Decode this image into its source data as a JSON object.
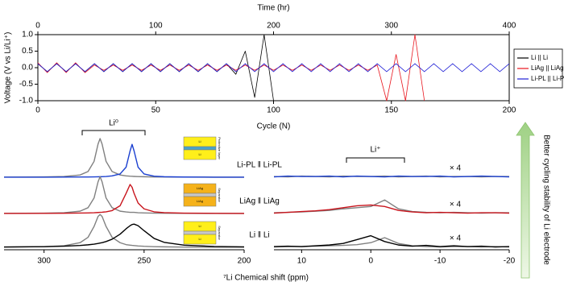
{
  "chart_data": [
    {
      "type": "line",
      "x_label": "Cycle (N)",
      "x2_label": "Time (hr)",
      "y_label": "Voltage (V vs Li/Li⁺)",
      "xlim": [
        0,
        200
      ],
      "xticks": [
        0,
        50,
        100,
        150,
        200
      ],
      "x2lim": [
        0,
        400
      ],
      "x2ticks": [
        0,
        100,
        200,
        300,
        400
      ],
      "ylim": [
        -1,
        1
      ],
      "yticks": [
        {
          "value": -1,
          "label": "-1.0"
        },
        -0.5,
        {
          "value": 0,
          "label": "0.0"
        },
        0.5,
        {
          "value": 1,
          "label": "1.0"
        }
      ],
      "legend": "right",
      "x": [
        0,
        4,
        8,
        12,
        16,
        20,
        24,
        28,
        32,
        36,
        40,
        44,
        48,
        52,
        56,
        60,
        64,
        68,
        72,
        76,
        80,
        84,
        88,
        92,
        96,
        100,
        104,
        108,
        112,
        116,
        120,
        124,
        128,
        132,
        136,
        140,
        144,
        148,
        152,
        156,
        160,
        164,
        168,
        172,
        176,
        180,
        184,
        188,
        192,
        196,
        200
      ],
      "series": [
        {
          "name": "Li || Li",
          "color": "#000000",
          "values": [
            0.12,
            -0.12,
            0.12,
            -0.12,
            0.12,
            -0.12,
            0.12,
            -0.12,
            0.12,
            -0.12,
            0.12,
            -0.12,
            0.12,
            -0.12,
            0.12,
            -0.12,
            0.12,
            -0.12,
            0.12,
            -0.12,
            0.12,
            -0.2,
            0.5,
            -0.9,
            1,
            -1,
            null,
            null,
            null,
            null,
            null,
            null,
            null,
            null,
            null,
            null,
            null,
            null,
            null,
            null,
            null,
            null,
            null,
            null,
            null,
            null,
            null,
            null,
            null,
            null,
            null
          ]
        },
        {
          "name": "LiAg || LiAg",
          "color": "#e8141c",
          "values": [
            0.15,
            -0.15,
            0.15,
            -0.15,
            0.15,
            -0.15,
            0.08,
            -0.08,
            0.08,
            -0.08,
            0.08,
            -0.08,
            0.08,
            -0.08,
            0.08,
            -0.08,
            0.08,
            -0.08,
            0.08,
            -0.08,
            0.08,
            -0.08,
            0.08,
            -0.08,
            0.08,
            -0.08,
            0.08,
            -0.08,
            0.08,
            -0.08,
            0.08,
            -0.08,
            0.08,
            -0.08,
            0.08,
            -0.08,
            0.08,
            -1,
            0.4,
            -1,
            1,
            -1,
            null,
            null,
            null,
            null,
            null,
            null,
            null,
            null,
            null
          ]
        },
        {
          "name": "Li-PL || Li-PL",
          "color": "#1f1fd6",
          "values": [
            0.12,
            -0.12,
            0.12,
            -0.12,
            0.12,
            -0.12,
            0.12,
            -0.12,
            0.12,
            -0.12,
            0.12,
            -0.12,
            0.12,
            -0.12,
            0.12,
            -0.12,
            0.12,
            -0.12,
            0.12,
            -0.12,
            0.12,
            -0.12,
            0.12,
            -0.12,
            0.12,
            -0.12,
            0.12,
            -0.12,
            0.12,
            -0.12,
            0.12,
            -0.12,
            0.12,
            -0.12,
            0.12,
            -0.12,
            0.12,
            -0.12,
            0.12,
            -0.12,
            0.12,
            -0.12,
            0.12,
            -0.12,
            0.12,
            -0.12,
            0.12,
            -0.12,
            0.12,
            -0.12,
            0.12
          ]
        }
      ]
    },
    {
      "type": "line",
      "annotation": "Li⁰",
      "xlim": [
        320,
        200
      ],
      "xticks": [
        300,
        250,
        200
      ],
      "x": [
        320,
        300,
        290,
        282,
        278,
        275,
        273,
        272,
        271,
        269,
        266,
        262,
        259,
        257,
        256,
        255,
        253,
        250,
        245,
        240,
        230,
        215,
        200
      ],
      "rows": [
        {
          "label": "Li-PL ‖ Li-PL",
          "inset": [
            "Li",
            "Li",
            "Protective layer"
          ],
          "series": [
            {
              "color": "#808080",
              "values": [
                0.003,
                0.008,
                0.019,
                0.059,
                0.148,
                0.41,
                0.86,
                1,
                0.86,
                0.41,
                0.148,
                0.059,
                0.036,
                0.027,
                0.024,
                0.021,
                0.017,
                0.013,
                0.008,
                0.006,
                0.004,
                0.002,
                0.001
              ]
            },
            {
              "color": "#1a3fd0",
              "values": [
                0.001,
                0.002,
                0.003,
                0.006,
                0.007,
                0.009,
                0.011,
                0.013,
                0.015,
                0.02,
                0.035,
                0.085,
                0.26,
                0.68,
                0.85,
                0.68,
                0.26,
                0.085,
                0.027,
                0.013,
                0.005,
                0.002,
                0.001
              ]
            }
          ]
        },
        {
          "label": "LiAg ‖ LiAg",
          "inset": [
            "LiAg",
            "LiAg",
            "Separator"
          ],
          "series": [
            {
              "color": "#808080",
              "values": [
                0.003,
                0.008,
                0.02,
                0.06,
                0.15,
                0.4,
                0.82,
                0.95,
                0.82,
                0.4,
                0.15,
                0.06,
                0.04,
                0.03,
                0.03,
                0.03,
                0.02,
                0.015,
                0.01,
                0.006,
                0.004,
                0.002,
                0.001
              ]
            },
            {
              "color": "#c8141c",
              "values": [
                0.001,
                0.004,
                0.006,
                0.011,
                0.015,
                0.02,
                0.026,
                0.029,
                0.033,
                0.044,
                0.075,
                0.2,
                0.52,
                0.75,
                0.68,
                0.52,
                0.27,
                0.12,
                0.044,
                0.023,
                0.01,
                0.004,
                0.002
              ]
            }
          ]
        },
        {
          "label": "Li ‖ Li",
          "inset": [
            "Li",
            "Li",
            "Separator"
          ],
          "series": [
            {
              "color": "#808080",
              "values": [
                0.006,
                0.017,
                0.04,
                0.12,
                0.26,
                0.54,
                0.8,
                0.85,
                0.8,
                0.54,
                0.26,
                0.12,
                0.07,
                0.057,
                0.05,
                0.045,
                0.036,
                0.027,
                0.018,
                0.013,
                0.007,
                0.004,
                0.003
              ]
            },
            {
              "color": "#000000",
              "values": [
                0.009,
                0.018,
                0.03,
                0.048,
                0.065,
                0.083,
                0.1,
                0.11,
                0.12,
                0.15,
                0.21,
                0.34,
                0.48,
                0.56,
                0.59,
                0.6,
                0.56,
                0.43,
                0.23,
                0.13,
                0.055,
                0.022,
                0.011
              ]
            }
          ]
        }
      ]
    },
    {
      "type": "line",
      "annotation": "Li⁺",
      "xlim": [
        14,
        -20
      ],
      "xticks": [
        10,
        0,
        -10,
        -20
      ],
      "x": [
        14,
        12,
        10,
        8,
        6,
        4,
        2,
        0,
        -2,
        -4,
        -6,
        -8,
        -10,
        -12,
        -14,
        -16,
        -18,
        -20
      ],
      "rows": [
        {
          "annotation": "× 4",
          "series": [
            {
              "color": "#808080",
              "values": [
                0.02,
                0.01,
                0.03,
                0.02,
                0.01,
                0.03,
                0.02,
                0.02,
                0.03,
                0.01,
                0.02,
                0.03,
                0.01,
                0.02,
                0.02,
                0.01,
                0.02,
                0.02
              ]
            },
            {
              "color": "#1a3fd0",
              "values": [
                0.01,
                0.03,
                0.02,
                0.02,
                0.03,
                0.01,
                0.03,
                0.02,
                0.01,
                0.03,
                0.02,
                0.02,
                0.03,
                0.01,
                0.02,
                0.03,
                0.02,
                0.01
              ]
            }
          ]
        },
        {
          "annotation": "× 4",
          "series": [
            {
              "color": "#808080",
              "values": [
                0.02,
                0.03,
                0.04,
                0.06,
                0.08,
                0.12,
                0.15,
                0.18,
                0.35,
                0.12,
                0.05,
                0.03,
                0.02,
                0.03,
                0.02,
                0.01,
                0.02,
                0.02
              ]
            },
            {
              "color": "#c8141c",
              "values": [
                0.01,
                0.03,
                0.05,
                0.07,
                0.1,
                0.15,
                0.2,
                0.22,
                0.18,
                0.08,
                0.04,
                0.02,
                0.03,
                0.02,
                0.01,
                0.02,
                0.02,
                0.01
              ]
            }
          ]
        },
        {
          "annotation": "× 4",
          "series": [
            {
              "color": "#808080",
              "values": [
                0.01,
                0.02,
                0.02,
                0.03,
                0.04,
                0.05,
                0.07,
                0.12,
                0.25,
                0.1,
                0.04,
                0.02,
                0.01,
                0.02,
                0.02,
                0.01,
                0.02,
                0.01
              ]
            },
            {
              "color": "#000000",
              "values": [
                0.02,
                0.03,
                0.02,
                0.04,
                0.06,
                0.1,
                0.2,
                0.3,
                0.15,
                0.06,
                0.03,
                0.05,
                0.02,
                0.04,
                0.02,
                0.03,
                0.01,
                0.02
              ]
            }
          ]
        }
      ]
    }
  ],
  "x_label": "⁷Li Chemical shift (ppm)",
  "arrow_label": "Better cycling stability of Li electrode"
}
